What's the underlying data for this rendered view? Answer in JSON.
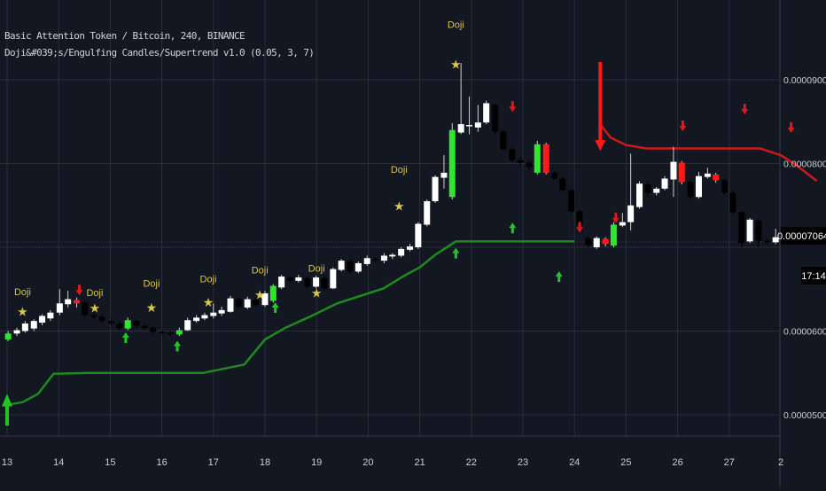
{
  "header": {
    "symbol_line": "Basic Attention Token / Bitcoin, 240, BINANCE",
    "indicator_line": "Doji&#039;s/Engulfing Candles/Supertrend v1.0 (0.05, 3, 7)"
  },
  "colors": {
    "background": "#131722",
    "grid": "#2a2e39",
    "up_candle": "#ffffff",
    "down_candle": "#000000",
    "engulfing_bull": "#2ee62e",
    "engulfing_bear": "#ff1a1a",
    "supertrend_up": "#1f8a1f",
    "supertrend_down": "#cc1a1a",
    "doji_label": "#d8c644"
  },
  "price_tag": {
    "value": "0.00007064",
    "countdown": "17:14"
  },
  "chart_data": {
    "type": "candlestick",
    "title": "Basic Attention Token / Bitcoin, 240, BINANCE",
    "x_ticks": [
      "13",
      "14",
      "15",
      "16",
      "17",
      "18",
      "19",
      "20",
      "21",
      "22",
      "23",
      "24",
      "25",
      "26",
      "27",
      "2"
    ],
    "y_ticks": [
      "0.00009000",
      "0.00008000",
      "0.00006000",
      "0.00005000"
    ],
    "ylim": [
      4.75e-05,
      0.0001
    ],
    "x_range": [
      13.0,
      28.0
    ],
    "grid": true,
    "legend": "none",
    "candles": [
      [
        13.02,
        5.9e-05,
        5.97e-05,
        5.88e-05,
        6e-05,
        "bull"
      ],
      [
        13.19,
        5.97e-05,
        6.01e-05,
        5.94e-05,
        6.04e-05,
        "up"
      ],
      [
        13.35,
        6e-05,
        6.09e-05,
        5.98e-05,
        6.12e-05,
        "up"
      ],
      [
        13.52,
        6.03e-05,
        6.12e-05,
        6e-05,
        6.14e-05,
        "up"
      ],
      [
        13.68,
        6.1e-05,
        6.18e-05,
        6.07e-05,
        6.2e-05,
        "up"
      ],
      [
        13.84,
        6.15e-05,
        6.22e-05,
        6.12e-05,
        6.25e-05,
        "up"
      ],
      [
        14.02,
        6.22e-05,
        6.33e-05,
        6.19e-05,
        6.5e-05,
        "up"
      ],
      [
        14.18,
        6.32e-05,
        6.38e-05,
        6.28e-05,
        6.48e-05,
        "up"
      ],
      [
        14.35,
        6.37e-05,
        6.33e-05,
        6.28e-05,
        6.4e-05,
        "bear"
      ],
      [
        14.51,
        6.34e-05,
        6.19e-05,
        6.17e-05,
        6.37e-05,
        "down"
      ],
      [
        14.68,
        6.19e-05,
        6.17e-05,
        6.14e-05,
        6.23e-05,
        "down"
      ],
      [
        14.84,
        6.17e-05,
        6.12e-05,
        6.09e-05,
        6.2e-05,
        "down"
      ],
      [
        15.02,
        6.12e-05,
        6.09e-05,
        6.06e-05,
        6.16e-05,
        "down"
      ],
      [
        15.18,
        6.09e-05,
        6.03e-05,
        6e-05,
        6.12e-05,
        "down"
      ],
      [
        15.34,
        6.03e-05,
        6.13e-05,
        6.01e-05,
        6.16e-05,
        "bull"
      ],
      [
        15.51,
        6.12e-05,
        6.06e-05,
        6.03e-05,
        6.14e-05,
        "down"
      ],
      [
        15.67,
        6.06e-05,
        6.04e-05,
        6.01e-05,
        6.09e-05,
        "down"
      ],
      [
        15.83,
        6.04e-05,
        5.99e-05,
        5.96e-05,
        6.06e-05,
        "down"
      ],
      [
        16.01,
        5.99e-05,
        5.98e-05,
        5.95e-05,
        6.01e-05,
        "down"
      ],
      [
        16.17,
        5.98e-05,
        5.96e-05,
        5.93e-05,
        6e-05,
        "down"
      ],
      [
        16.34,
        5.96e-05,
        6.01e-05,
        5.94e-05,
        6.04e-05,
        "bull"
      ],
      [
        16.5,
        6.01e-05,
        6.13e-05,
        6e-05,
        6.16e-05,
        "up"
      ],
      [
        16.67,
        6.12e-05,
        6.16e-05,
        6.1e-05,
        6.19e-05,
        "up"
      ],
      [
        16.83,
        6.15e-05,
        6.19e-05,
        6.13e-05,
        6.22e-05,
        "up"
      ],
      [
        17.0,
        6.18e-05,
        6.22e-05,
        6.15e-05,
        6.33e-05,
        "up"
      ],
      [
        17.16,
        6.21e-05,
        6.25e-05,
        6.18e-05,
        6.29e-05,
        "up"
      ],
      [
        17.33,
        6.23e-05,
        6.39e-05,
        6.22e-05,
        6.42e-05,
        "up"
      ],
      [
        17.49,
        6.38e-05,
        6.29e-05,
        6.26e-05,
        6.4e-05,
        "down"
      ],
      [
        17.66,
        6.28e-05,
        6.38e-05,
        6.26e-05,
        6.41e-05,
        "up"
      ],
      [
        17.82,
        6.37e-05,
        6.31e-05,
        6.29e-05,
        6.4e-05,
        "down"
      ],
      [
        18.0,
        6.31e-05,
        6.45e-05,
        6.29e-05,
        6.48e-05,
        "up"
      ],
      [
        18.16,
        6.36e-05,
        6.54e-05,
        6.34e-05,
        6.56e-05,
        "bull"
      ],
      [
        18.32,
        6.52e-05,
        6.65e-05,
        6.5e-05,
        6.67e-05,
        "up"
      ],
      [
        18.49,
        6.64e-05,
        6.6e-05,
        6.57e-05,
        6.66e-05,
        "down"
      ],
      [
        18.65,
        6.6e-05,
        6.64e-05,
        6.58e-05,
        6.67e-05,
        "up"
      ],
      [
        18.82,
        6.63e-05,
        6.53e-05,
        6.51e-05,
        6.65e-05,
        "down"
      ],
      [
        18.99,
        6.53e-05,
        6.64e-05,
        6.51e-05,
        6.66e-05,
        "up"
      ],
      [
        19.15,
        6.63e-05,
        6.51e-05,
        6.49e-05,
        6.66e-05,
        "down"
      ],
      [
        19.32,
        6.51e-05,
        6.74e-05,
        6.5e-05,
        6.76e-05,
        "up"
      ],
      [
        19.48,
        6.73e-05,
        6.84e-05,
        6.71e-05,
        6.86e-05,
        "up"
      ],
      [
        19.65,
        6.83e-05,
        6.71e-05,
        6.68e-05,
        6.86e-05,
        "down"
      ],
      [
        19.81,
        6.71e-05,
        6.81e-05,
        6.69e-05,
        6.83e-05,
        "up"
      ],
      [
        19.98,
        6.8e-05,
        6.87e-05,
        6.78e-05,
        6.9e-05,
        "up"
      ],
      [
        20.14,
        6.86e-05,
        6.84e-05,
        6.81e-05,
        6.88e-05,
        "down"
      ],
      [
        20.31,
        6.84e-05,
        6.9e-05,
        6.81e-05,
        6.93e-05,
        "up"
      ],
      [
        20.47,
        6.89e-05,
        6.91e-05,
        6.86e-05,
        6.93e-05,
        "up"
      ],
      [
        20.64,
        6.9e-05,
        6.98e-05,
        6.88e-05,
        7e-05,
        "up"
      ],
      [
        20.81,
        6.97e-05,
        7.01e-05,
        6.95e-05,
        7.04e-05,
        "up"
      ],
      [
        20.97,
        7e-05,
        7.28e-05,
        6.98e-05,
        7.3e-05,
        "up"
      ],
      [
        21.14,
        7.27e-05,
        7.55e-05,
        7.25e-05,
        7.57e-05,
        "up"
      ],
      [
        21.3,
        7.55e-05,
        7.84e-05,
        7.53e-05,
        7.86e-05,
        "up"
      ],
      [
        21.47,
        7.83e-05,
        7.89e-05,
        7.7e-05,
        8.1e-05,
        "up"
      ],
      [
        21.63,
        7.6e-05,
        8.4e-05,
        7.57e-05,
        8.48e-05,
        "bull"
      ],
      [
        21.8,
        8.37e-05,
        8.47e-05,
        8.35e-05,
        9.2e-05,
        "up"
      ],
      [
        21.96,
        8.46e-05,
        8.46e-05,
        8.35e-05,
        8.8e-05,
        "up"
      ],
      [
        22.13,
        8.43e-05,
        8.49e-05,
        8.38e-05,
        8.7e-05,
        "up"
      ],
      [
        22.29,
        8.49e-05,
        8.72e-05,
        8.47e-05,
        8.75e-05,
        "up"
      ],
      [
        22.46,
        8.7e-05,
        8.38e-05,
        8.35e-05,
        8.72e-05,
        "down"
      ],
      [
        22.62,
        8.38e-05,
        8.17e-05,
        8.15e-05,
        8.4e-05,
        "down"
      ],
      [
        22.79,
        8.17e-05,
        8.04e-05,
        8.01e-05,
        8.19e-05,
        "down"
      ],
      [
        22.95,
        8.04e-05,
        8.01e-05,
        7.98e-05,
        8.08e-05,
        "down"
      ],
      [
        23.12,
        8.01e-05,
        7.96e-05,
        7.92e-05,
        8.03e-05,
        "down"
      ],
      [
        23.28,
        7.89e-05,
        8.23e-05,
        7.87e-05,
        8.27e-05,
        "bull"
      ],
      [
        23.45,
        8.23e-05,
        7.89e-05,
        7.87e-05,
        8.25e-05,
        "bear"
      ],
      [
        23.61,
        7.89e-05,
        7.82e-05,
        7.8e-05,
        7.91e-05,
        "down"
      ],
      [
        23.77,
        7.82e-05,
        7.68e-05,
        7.65e-05,
        7.84e-05,
        "down"
      ],
      [
        23.94,
        7.68e-05,
        7.43e-05,
        7.4e-05,
        7.7e-05,
        "down"
      ],
      [
        24.1,
        7.43e-05,
        7.27e-05,
        7.24e-05,
        7.45e-05,
        "down"
      ],
      [
        24.27,
        7.11e-05,
        7.02e-05,
        6.98e-05,
        7.13e-05,
        "down"
      ],
      [
        24.43,
        7e-05,
        7.11e-05,
        6.98e-05,
        7.13e-05,
        "up"
      ],
      [
        24.6,
        7.1e-05,
        7.04e-05,
        7.01e-05,
        7.12e-05,
        "bear"
      ],
      [
        24.76,
        7.02e-05,
        7.27e-05,
        7e-05,
        7.3e-05,
        "bull"
      ],
      [
        24.93,
        7.26e-05,
        7.3e-05,
        7.24e-05,
        7.41e-05,
        "up"
      ],
      [
        25.09,
        7.3e-05,
        7.5e-05,
        7.2e-05,
        8.12e-05,
        "up"
      ],
      [
        25.26,
        7.48e-05,
        7.76e-05,
        7.46e-05,
        7.79e-05,
        "up"
      ],
      [
        25.42,
        7.75e-05,
        7.65e-05,
        7.6e-05,
        7.78e-05,
        "down"
      ],
      [
        25.59,
        7.65e-05,
        7.7e-05,
        7.62e-05,
        7.72e-05,
        "up"
      ],
      [
        25.75,
        7.7e-05,
        7.82e-05,
        7.68e-05,
        7.85e-05,
        "up"
      ],
      [
        25.92,
        7.81e-05,
        8.02e-05,
        7.6e-05,
        8.2e-05,
        "up"
      ],
      [
        26.08,
        8.01e-05,
        7.78e-05,
        7.75e-05,
        8.03e-05,
        "bear"
      ],
      [
        26.25,
        7.78e-05,
        7.6e-05,
        7.57e-05,
        7.8e-05,
        "down"
      ],
      [
        26.41,
        7.6e-05,
        7.85e-05,
        7.58e-05,
        7.9e-05,
        "up"
      ],
      [
        26.58,
        7.84e-05,
        7.88e-05,
        7.82e-05,
        7.95e-05,
        "up"
      ],
      [
        26.74,
        7.87e-05,
        7.8e-05,
        7.77e-05,
        7.89e-05,
        "bear"
      ],
      [
        26.91,
        7.8e-05,
        7.65e-05,
        7.62e-05,
        7.82e-05,
        "down"
      ],
      [
        27.07,
        7.65e-05,
        7.42e-05,
        7.39e-05,
        7.67e-05,
        "down"
      ],
      [
        27.24,
        7.42e-05,
        7.05e-05,
        7e-05,
        7.44e-05,
        "down"
      ],
      [
        27.4,
        7.07e-05,
        7.33e-05,
        7.05e-05,
        7.35e-05,
        "up"
      ],
      [
        27.57,
        7.32e-05,
        7.08e-05,
        7e-05,
        7.34e-05,
        "down"
      ],
      [
        27.73,
        7.08e-05,
        7.06e-05,
        7.03e-05,
        7.1e-05,
        "down"
      ],
      [
        27.9,
        7.06e-05,
        7.12e-05,
        7.04e-05,
        7.22e-05,
        "up"
      ],
      [
        28.06,
        7.11e-05,
        7.07e-05,
        7.04e-05,
        7.14e-05,
        "down"
      ]
    ],
    "supertrend_up": [
      [
        13.0,
        4.87e-05
      ],
      [
        13.0,
        5.12e-05
      ],
      [
        13.3,
        5.15e-05
      ],
      [
        13.6,
        5.25e-05
      ],
      [
        13.9,
        5.49e-05
      ],
      [
        14.6,
        5.5e-05
      ],
      [
        16.8,
        5.5e-05
      ],
      [
        17.6,
        5.6e-05
      ],
      [
        18.0,
        5.9e-05
      ],
      [
        18.4,
        6.04e-05
      ],
      [
        18.9,
        6.18e-05
      ],
      [
        19.4,
        6.33e-05
      ],
      [
        19.8,
        6.41e-05
      ],
      [
        20.3,
        6.51e-05
      ],
      [
        20.7,
        6.66e-05
      ],
      [
        21.0,
        6.76e-05
      ],
      [
        21.3,
        6.91e-05
      ],
      [
        21.7,
        7.07e-05
      ],
      [
        22.4,
        7.07e-05
      ],
      [
        24.0,
        7.07e-05
      ]
    ],
    "supertrend_down": [
      [
        24.5,
        9.21e-05
      ],
      [
        24.5,
        8.47e-05
      ],
      [
        24.7,
        8.31e-05
      ],
      [
        25.0,
        8.22e-05
      ],
      [
        25.4,
        8.18e-05
      ],
      [
        26.5,
        8.18e-05
      ],
      [
        27.6,
        8.18e-05
      ],
      [
        28.0,
        8.1e-05
      ],
      [
        28.3,
        7.98e-05
      ],
      [
        28.7,
        7.79e-05
      ]
    ],
    "doji_labels": [
      [
        13.3,
        6.43e-05,
        "Doji"
      ],
      [
        14.7,
        6.42e-05,
        "Doji"
      ],
      [
        15.8,
        6.53e-05,
        "Doji"
      ],
      [
        16.9,
        6.58e-05,
        "Doji"
      ],
      [
        17.9,
        6.69e-05,
        "Doji"
      ],
      [
        19.0,
        6.71e-05,
        "Doji"
      ],
      [
        20.6,
        7.89e-05,
        "Doji"
      ],
      [
        21.7,
        9.62e-05,
        "Doji"
      ]
    ],
    "star_markers": [
      [
        13.3,
        6.18e-05
      ],
      [
        14.7,
        6.22e-05
      ],
      [
        15.8,
        6.23e-05
      ],
      [
        16.9,
        6.29e-05
      ],
      [
        17.9,
        6.38e-05
      ],
      [
        19.0,
        6.4e-05
      ],
      [
        20.6,
        7.44e-05
      ],
      [
        21.7,
        9.13e-05
      ]
    ],
    "buy_arrows": [
      [
        15.3,
        5.92e-05
      ],
      [
        16.3,
        5.82e-05
      ],
      [
        18.2,
        6.28e-05
      ],
      [
        21.7,
        6.93e-05
      ],
      [
        22.8,
        7.23e-05
      ],
      [
        23.7,
        6.65e-05
      ]
    ],
    "sell_arrows": [
      [
        14.4,
        6.49e-05
      ],
      [
        22.8,
        8.68e-05
      ],
      [
        24.1,
        7.24e-05
      ],
      [
        24.8,
        7.35e-05
      ],
      [
        26.1,
        8.45e-05
      ],
      [
        27.3,
        8.65e-05
      ],
      [
        28.2,
        8.43e-05
      ]
    ]
  }
}
